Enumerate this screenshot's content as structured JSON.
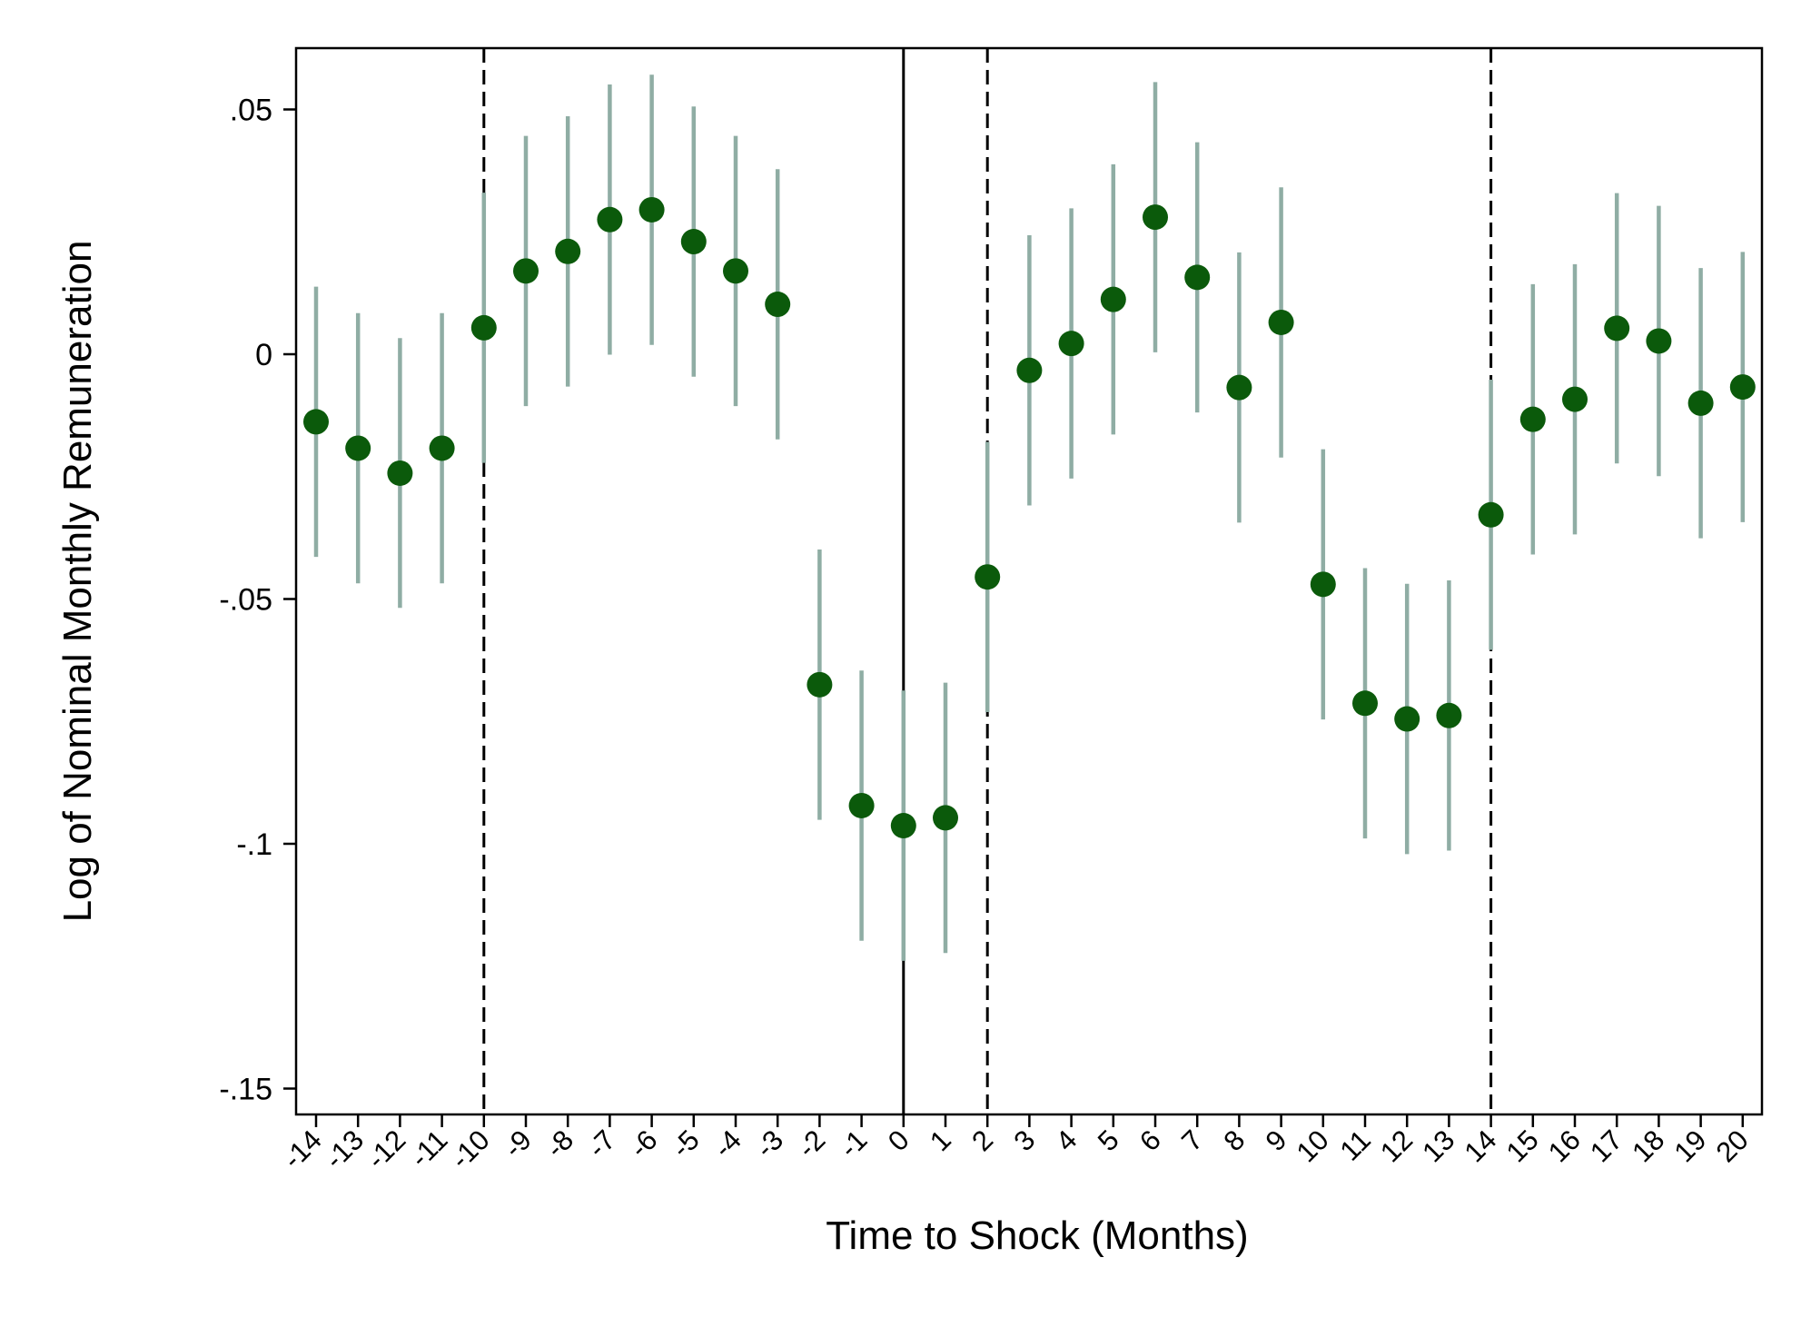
{
  "chart_data": {
    "type": "scatter",
    "title": "",
    "xlabel": "Time to Shock (Months)",
    "ylabel": "Log of Nominal Monthly Remuneration",
    "xlim": [
      -14,
      20
    ],
    "ylim": [
      -0.15,
      0.06
    ],
    "yticks": [
      {
        "value": 0.05,
        "label": ".05"
      },
      {
        "value": 0,
        "label": "0"
      },
      {
        "value": -0.05,
        "label": "-.05"
      },
      {
        "value": -0.1,
        "label": "-.1"
      },
      {
        "value": -0.15,
        "label": "-.15"
      }
    ],
    "xticks": [
      {
        "value": -14,
        "label": "-14"
      },
      {
        "value": -13,
        "label": "-13"
      },
      {
        "value": -12,
        "label": "-12"
      },
      {
        "value": -11,
        "label": "-11"
      },
      {
        "value": -10,
        "label": "-10"
      },
      {
        "value": -9,
        "label": "-9"
      },
      {
        "value": -8,
        "label": "-8"
      },
      {
        "value": -7,
        "label": "-7"
      },
      {
        "value": -6,
        "label": "-6"
      },
      {
        "value": -5,
        "label": "-5"
      },
      {
        "value": -4,
        "label": "-4"
      },
      {
        "value": -3,
        "label": "-3"
      },
      {
        "value": -2,
        "label": "-2"
      },
      {
        "value": -1,
        "label": "-1"
      },
      {
        "value": 0,
        "label": "0"
      },
      {
        "value": 1,
        "label": "1"
      },
      {
        "value": 2,
        "label": "2"
      },
      {
        "value": 3,
        "label": "3"
      },
      {
        "value": 4,
        "label": "4"
      },
      {
        "value": 5,
        "label": "5"
      },
      {
        "value": 6,
        "label": "6"
      },
      {
        "value": 7,
        "label": "7"
      },
      {
        "value": 8,
        "label": "8"
      },
      {
        "value": 9,
        "label": "9"
      },
      {
        "value": 10,
        "label": "10"
      },
      {
        "value": 11,
        "label": "11"
      },
      {
        "value": 12,
        "label": "12"
      },
      {
        "value": 13,
        "label": "13"
      },
      {
        "value": 14,
        "label": "14"
      },
      {
        "value": 15,
        "label": "15"
      },
      {
        "value": 16,
        "label": "16"
      },
      {
        "value": 17,
        "label": "17"
      },
      {
        "value": 18,
        "label": "18"
      },
      {
        "value": 19,
        "label": "19"
      },
      {
        "value": 20,
        "label": "20"
      }
    ],
    "grid": false,
    "legend": "none",
    "reference_lines": [
      {
        "x": -10,
        "style": "dashed"
      },
      {
        "x": 0,
        "style": "solid"
      },
      {
        "x": 2,
        "style": "dashed"
      },
      {
        "x": 14,
        "style": "dashed"
      }
    ],
    "series": [
      {
        "x": [
          -14,
          -13,
          -12,
          -11,
          -10,
          -9,
          -8,
          -7,
          -6,
          -5,
          -4,
          -3,
          -2,
          -1,
          0,
          1,
          2,
          3,
          4,
          5,
          6,
          7,
          8,
          9,
          10,
          11,
          12,
          13,
          14,
          15,
          16,
          17,
          18,
          19,
          20
        ],
        "y": [
          -0.0138,
          -0.0192,
          -0.0243,
          -0.0192,
          0.0054,
          0.017,
          0.021,
          0.0275,
          0.0295,
          0.023,
          0.017,
          0.0102,
          -0.0675,
          -0.0922,
          -0.0963,
          -0.0947,
          -0.0455,
          -0.0033,
          0.0022,
          0.0112,
          0.028,
          0.0157,
          -0.0068,
          0.0065,
          -0.047,
          -0.0713,
          -0.0745,
          -0.0738,
          -0.0328,
          -0.0133,
          -0.0092,
          0.0053,
          0.0027,
          -0.01,
          -0.0067
        ],
        "ci_low": [
          -0.0414,
          -0.0468,
          -0.0518,
          -0.0468,
          -0.0222,
          -0.0106,
          -0.0066,
          -0.0001,
          0.0019,
          -0.0046,
          -0.0106,
          -0.0174,
          -0.0951,
          -0.1198,
          -0.1239,
          -0.1223,
          -0.0731,
          -0.0309,
          -0.0254,
          -0.0164,
          0.0004,
          -0.0119,
          -0.0344,
          -0.0211,
          -0.0746,
          -0.0989,
          -0.1021,
          -0.1014,
          -0.0604,
          -0.0409,
          -0.0368,
          -0.0223,
          -0.0249,
          -0.0376,
          -0.0343
        ],
        "ci_high": [
          0.0138,
          0.0084,
          0.0033,
          0.0084,
          0.033,
          0.0446,
          0.0486,
          0.0551,
          0.0571,
          0.0506,
          0.0446,
          0.0378,
          -0.0399,
          -0.0646,
          -0.0687,
          -0.0671,
          -0.0179,
          0.0243,
          0.0298,
          0.0388,
          0.0556,
          0.0433,
          0.0208,
          0.0341,
          -0.0194,
          -0.0437,
          -0.0469,
          -0.0462,
          -0.0052,
          0.0143,
          0.0184,
          0.0329,
          0.0303,
          0.0176,
          0.0209
        ]
      }
    ],
    "colors": {
      "marker": "#0b5a0b",
      "ci": "#8fada4",
      "axis": "#000000"
    }
  }
}
